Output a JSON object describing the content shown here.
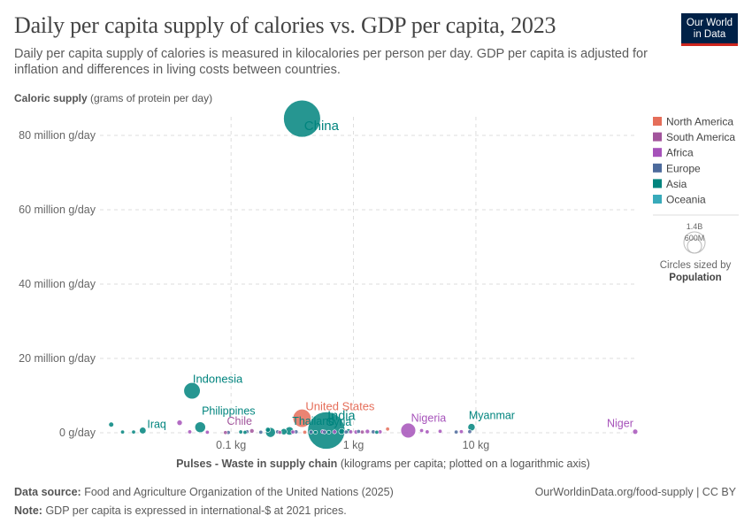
{
  "header": {
    "title": "Daily per capita supply of calories vs. GDP per capita, 2023",
    "subtitle": "Daily per capita supply of calories is measured in kilocalories per person per day. GDP per capita is adjusted for inflation and differences in living costs between countries.",
    "logo_line1": "Our World",
    "logo_line2": "in Data"
  },
  "colors": {
    "North America": "#e56e5a",
    "South America": "#a2559c",
    "Africa": "#a652ba",
    "Europe": "#4c6a9c",
    "Asia": "#00847e",
    "Oceania": "#38aaba"
  },
  "legend": {
    "regions": [
      "North America",
      "South America",
      "Africa",
      "Europe",
      "Asia",
      "Oceania"
    ],
    "size_title": "Circles sized by",
    "size_metric": "Population",
    "size_labels": [
      "1.4B",
      "600M"
    ]
  },
  "footer": {
    "source_label": "Data source:",
    "source_text": "Food and Agriculture Organization of the United Nations (2025)",
    "note_label": "Note:",
    "note_text": "GDP per capita is expressed in international-$ at 2021 prices.",
    "credit": "OurWorldinData.org/food-supply | CC BY"
  },
  "chart_data": {
    "type": "scatter",
    "ylabel_bold": "Caloric supply",
    "ylabel_rest": "(grams of protein per day)",
    "xlabel_bold": "Pulses - Waste in supply chain",
    "xlabel_rest": "(kilograms per capita; plotted on a logarithmic axis)",
    "x_scale": "log",
    "xlim": [
      0.0085,
      200
    ],
    "ylim": [
      0,
      85000000
    ],
    "x_ticks": [
      {
        "value": 0.1,
        "label": "0.1 kg"
      },
      {
        "value": 1,
        "label": "1 kg"
      },
      {
        "value": 10,
        "label": "10 kg"
      }
    ],
    "y_ticks": [
      {
        "value": 0,
        "label": "0 g/day"
      },
      {
        "value": 20000000,
        "label": "20 million g/day"
      },
      {
        "value": 40000000,
        "label": "40 million g/day"
      },
      {
        "value": 60000000,
        "label": "60 million g/day"
      },
      {
        "value": 80000000,
        "label": "80 million g/day"
      }
    ],
    "grid": true,
    "legend_position": "right",
    "points": [
      {
        "label": "China",
        "region": "Asia",
        "x": 0.38,
        "y": 84500000,
        "pop": 1410000000
      },
      {
        "label": "Indonesia",
        "region": "Asia",
        "x": 0.048,
        "y": 11300000,
        "pop": 278000000
      },
      {
        "label": "United States",
        "region": "North America",
        "x": 0.38,
        "y": 3900000,
        "pop": 340000000
      },
      {
        "label": "India",
        "region": "Asia",
        "x": 0.6,
        "y": 600000,
        "pop": 1430000000
      },
      {
        "label": "Philippines",
        "region": "Asia",
        "x": 0.056,
        "y": 1500000,
        "pop": 117000000
      },
      {
        "label": "Chile",
        "region": "South America",
        "x": 0.148,
        "y": 500000,
        "pop": 20000000
      },
      {
        "label": "Thailand",
        "region": "Asia",
        "x": 0.3,
        "y": 500000,
        "pop": 72000000
      },
      {
        "label": "Iraq",
        "region": "Asia",
        "x": 0.019,
        "y": 600000,
        "pop": 45000000
      },
      {
        "label": "Syria",
        "region": "Asia",
        "x": 0.91,
        "y": 450000,
        "pop": 23000000
      },
      {
        "label": "Nigeria",
        "region": "Africa",
        "x": 2.8,
        "y": 600000,
        "pop": 227000000
      },
      {
        "label": "Myanmar",
        "region": "Asia",
        "x": 9.2,
        "y": 1500000,
        "pop": 54000000
      },
      {
        "label": "Niger",
        "region": "Africa",
        "x": 200,
        "y": 300000,
        "pop": 27000000
      },
      {
        "label": "",
        "region": "Asia",
        "x": 0.0105,
        "y": 2200000,
        "pop": 26000000
      },
      {
        "label": "",
        "region": "Asia",
        "x": 0.013,
        "y": 200000,
        "pop": 12000000
      },
      {
        "label": "",
        "region": "Asia",
        "x": 0.016,
        "y": 200000,
        "pop": 10000000
      },
      {
        "label": "",
        "region": "Africa",
        "x": 0.038,
        "y": 2700000,
        "pop": 30000000
      },
      {
        "label": "",
        "region": "Africa",
        "x": 0.046,
        "y": 250000,
        "pop": 6000000
      },
      {
        "label": "",
        "region": "Africa",
        "x": 0.064,
        "y": 150000,
        "pop": 6000000
      },
      {
        "label": "",
        "region": "Europe",
        "x": 0.095,
        "y": 80000,
        "pop": 5000000
      },
      {
        "label": "",
        "region": "South America",
        "x": 0.09,
        "y": 60000,
        "pop": 4000000
      },
      {
        "label": "",
        "region": "Asia",
        "x": 0.12,
        "y": 220000,
        "pop": 6000000
      },
      {
        "label": "",
        "region": "Europe",
        "x": 0.135,
        "y": 300000,
        "pop": 10000000
      },
      {
        "label": "",
        "region": "Asia",
        "x": 0.13,
        "y": 120000,
        "pop": 5000000
      },
      {
        "label": "",
        "region": "Europe",
        "x": 0.175,
        "y": 150000,
        "pop": 9000000
      },
      {
        "label": "",
        "region": "Asia",
        "x": 0.2,
        "y": 800000,
        "pop": 25000000
      },
      {
        "label": "",
        "region": "Asia",
        "x": 0.21,
        "y": 100000,
        "pop": 100000000
      },
      {
        "label": "",
        "region": "Europe",
        "x": 0.24,
        "y": 250000,
        "pop": 12000000
      },
      {
        "label": "",
        "region": "South America",
        "x": 0.25,
        "y": 120000,
        "pop": 5000000
      },
      {
        "label": "",
        "region": "Asia",
        "x": 0.27,
        "y": 300000,
        "pop": 40000000
      },
      {
        "label": "",
        "region": "Africa",
        "x": 0.32,
        "y": 200000,
        "pop": 8000000
      },
      {
        "label": "",
        "region": "Europe",
        "x": 0.34,
        "y": 250000,
        "pop": 12000000
      },
      {
        "label": "",
        "region": "North America",
        "x": 0.4,
        "y": 150000,
        "pop": 8000000
      },
      {
        "label": "",
        "region": "Europe",
        "x": 0.45,
        "y": 200000,
        "pop": 10000000
      },
      {
        "label": "",
        "region": "Asia",
        "x": 0.49,
        "y": 120000,
        "pop": 9000000
      },
      {
        "label": "",
        "region": "Africa",
        "x": 0.56,
        "y": 300000,
        "pop": 12000000
      },
      {
        "label": "",
        "region": "Europe",
        "x": 0.58,
        "y": 200000,
        "pop": 8000000
      },
      {
        "label": "",
        "region": "Asia",
        "x": 0.63,
        "y": 150000,
        "pop": 7000000
      },
      {
        "label": "",
        "region": "Africa",
        "x": 0.7,
        "y": 250000,
        "pop": 6000000
      },
      {
        "label": "",
        "region": "Asia",
        "x": 0.8,
        "y": 350000,
        "pop": 35000000
      },
      {
        "label": "",
        "region": "Europe",
        "x": 0.87,
        "y": 200000,
        "pop": 8000000
      },
      {
        "label": "",
        "region": "Africa",
        "x": 0.95,
        "y": 250000,
        "pop": 12000000
      },
      {
        "label": "",
        "region": "Africa",
        "x": 1.05,
        "y": 200000,
        "pop": 18000000
      },
      {
        "label": "",
        "region": "Europe",
        "x": 1.1,
        "y": 350000,
        "pop": 10000000
      },
      {
        "label": "",
        "region": "South America",
        "x": 1.18,
        "y": 200000,
        "pop": 9000000
      },
      {
        "label": "",
        "region": "Africa",
        "x": 1.3,
        "y": 350000,
        "pop": 20000000
      },
      {
        "label": "",
        "region": "Europe",
        "x": 1.45,
        "y": 250000,
        "pop": 9000000
      },
      {
        "label": "",
        "region": "Asia",
        "x": 1.55,
        "y": 150000,
        "pop": 6000000
      },
      {
        "label": "",
        "region": "Africa",
        "x": 1.65,
        "y": 250000,
        "pop": 15000000
      },
      {
        "label": "",
        "region": "North America",
        "x": 1.9,
        "y": 1000000,
        "pop": 6000000
      },
      {
        "label": "",
        "region": "Africa",
        "x": 3.6,
        "y": 600000,
        "pop": 12000000
      },
      {
        "label": "",
        "region": "Africa",
        "x": 4.0,
        "y": 250000,
        "pop": 15000000
      },
      {
        "label": "",
        "region": "Africa",
        "x": 5.1,
        "y": 400000,
        "pop": 8000000
      },
      {
        "label": "",
        "region": "Europe",
        "x": 6.9,
        "y": 200000,
        "pop": 5000000
      },
      {
        "label": "",
        "region": "Africa",
        "x": 7.6,
        "y": 300000,
        "pop": 6000000
      },
      {
        "label": "",
        "region": "Europe",
        "x": 8.9,
        "y": 300000,
        "pop": 6000000
      }
    ]
  }
}
